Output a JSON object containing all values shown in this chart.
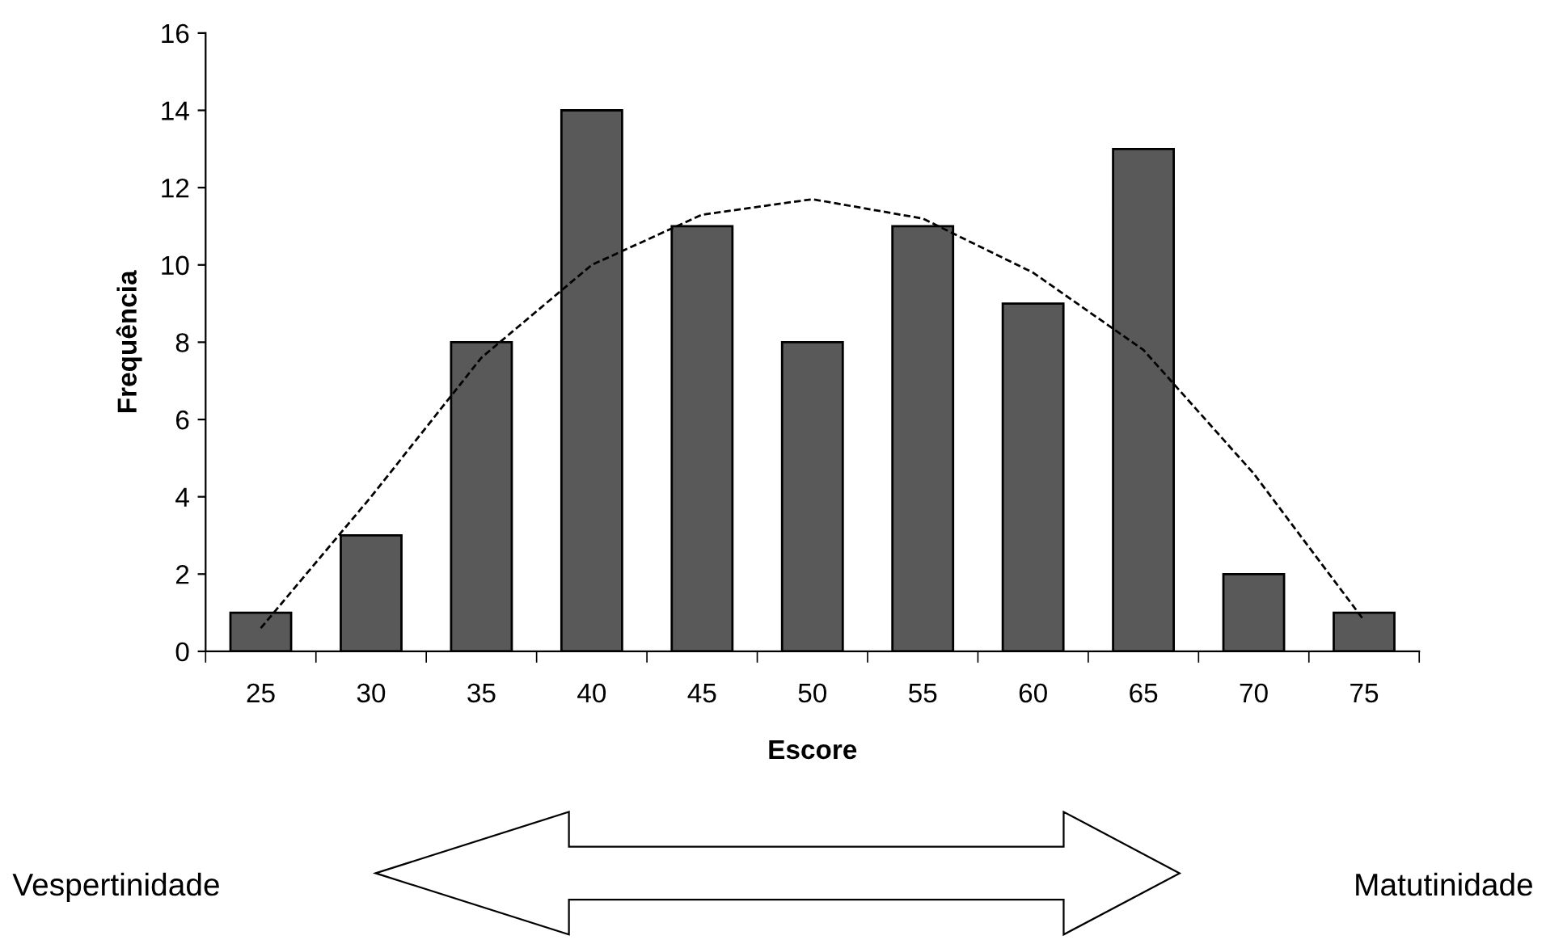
{
  "chart_data": {
    "type": "bar",
    "xlabel": "Escore",
    "ylabel": "Frequência",
    "categories": [
      "25",
      "30",
      "35",
      "40",
      "45",
      "50",
      "55",
      "60",
      "65",
      "70",
      "75"
    ],
    "series": [
      {
        "color": "#595959",
        "values": [
          1,
          3,
          8,
          14,
          11,
          8,
          11,
          9,
          13,
          2,
          1
        ]
      },
      {
        "type": "line",
        "color": "#000000",
        "line_style": "dashed",
        "x": [
          "25",
          "30",
          "35",
          "40",
          "45",
          "50",
          "55",
          "60",
          "65",
          "70",
          "75"
        ],
        "values": [
          0.6,
          4,
          7.6,
          10,
          11.3,
          11.7,
          11.2,
          9.8,
          7.8,
          4.6,
          0.8
        ]
      }
    ],
    "ylim": [
      0,
      16
    ],
    "yticks": [
      0,
      2,
      4,
      6,
      8,
      10,
      12,
      14,
      16
    ],
    "grid": false,
    "legend": false,
    "annotations": [
      "Vespertinidade",
      "Matutinidade"
    ]
  }
}
